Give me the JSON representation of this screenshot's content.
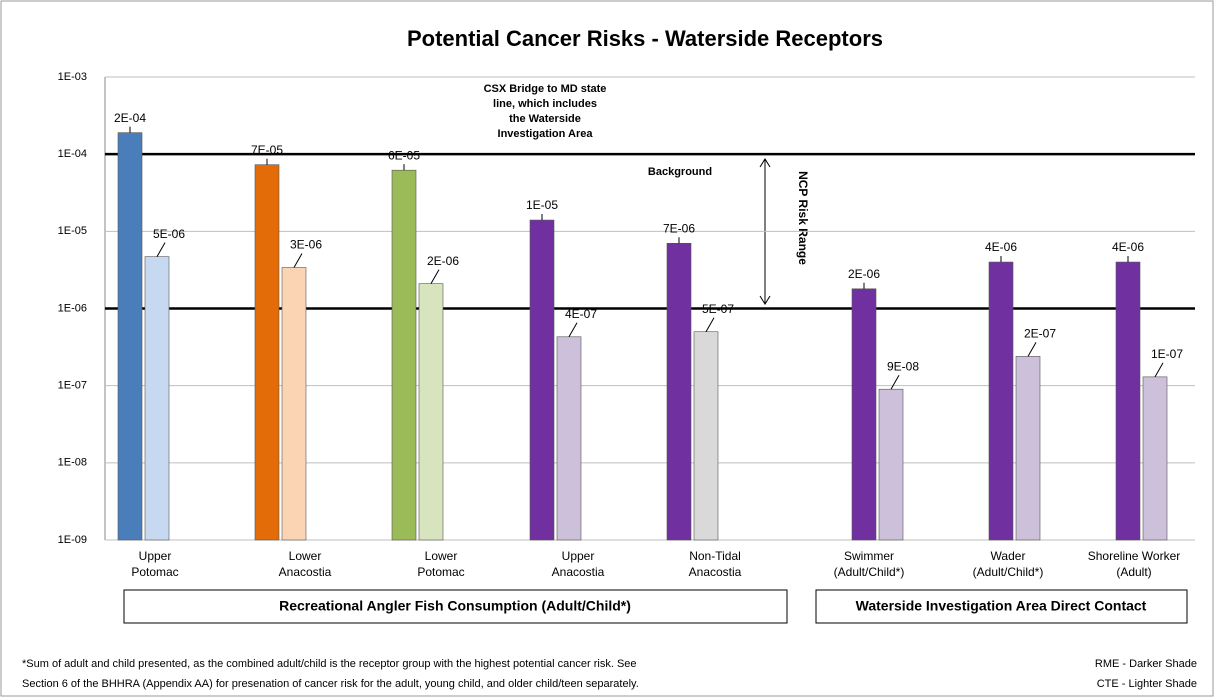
{
  "chart_data": {
    "type": "bar",
    "title": "Potential Cancer Risks - Waterside Receptors",
    "log_scale": true,
    "grid": true,
    "categories": [
      [
        "Upper",
        "Potomac"
      ],
      [
        "Lower",
        "Anacostia"
      ],
      [
        "Lower",
        "Potomac"
      ],
      [
        "Upper",
        "Anacostia"
      ],
      [
        "Non-Tidal",
        "Anacostia"
      ],
      [
        "Swimmer",
        "(Adult/Child*)"
      ],
      [
        "Wader",
        "(Adult/Child*)"
      ],
      [
        "Shoreline Worker",
        "(Adult)"
      ]
    ],
    "series": [
      {
        "name": "RME - Darker Shade",
        "colors": [
          "#4a7ebb",
          "#e36c09",
          "#9bbb59",
          "#7030a0",
          "#7030a0",
          "#7030a0",
          "#7030a0",
          "#7030a0"
        ],
        "values": [
          0.00019,
          7.3e-05,
          6.2e-05,
          1.4e-05,
          7e-06,
          1.8e-06,
          4e-06,
          4e-06
        ],
        "value_labels": [
          "2E-04",
          "7E-05",
          "6E-05",
          "1E-05",
          "7E-06",
          "2E-06",
          "4E-06",
          "4E-06"
        ]
      },
      {
        "name": "CTE - Lighter Shade",
        "colors": [
          "#c6d9f1",
          "#fbd4b4",
          "#d7e4bd",
          "#ccc0da",
          "#d9d9d9",
          "#ccc0da",
          "#ccc0da",
          "#ccc0da"
        ],
        "values": [
          4.7e-06,
          3.4e-06,
          2.1e-06,
          4.3e-07,
          5e-07,
          9e-08,
          2.4e-07,
          1.3e-07
        ],
        "value_labels": [
          "5E-06",
          "3E-06",
          "2E-06",
          "4E-07",
          "5E-07",
          "9E-08",
          "2E-07",
          "1E-07"
        ]
      }
    ],
    "ylim": [
      1e-09,
      0.001
    ],
    "yticks": [
      {
        "value": 1e-09,
        "label": "1E-09"
      },
      {
        "value": 1e-08,
        "label": "1E-08"
      },
      {
        "value": 1e-07,
        "label": "1E-07"
      },
      {
        "value": 1e-06,
        "label": "1E-06"
      },
      {
        "value": 1e-05,
        "label": "1E-05"
      },
      {
        "value": 0.0001,
        "label": "1E-04"
      },
      {
        "value": 0.001,
        "label": "1E-03"
      }
    ],
    "reference_lines": [
      0.0001,
      1e-06
    ],
    "annotations": {
      "bridge": [
        "CSX Bridge to MD state",
        "line, which includes",
        "the Waterside",
        "Investigation Area"
      ],
      "background": "Background",
      "range": "NCP Risk Range"
    },
    "groups": [
      "Recreational Angler Fish Consumption (Adult/Child*)",
      "Waterside Investigation Area Direct Contact"
    ],
    "footnote": [
      "*Sum of adult and child presented, as the combined adult/child is the receptor group with the highest potential cancer risk.  See",
      "Section 6 of the BHHRA (Appendix AA) for presenation of cancer risk for the adult, young child, and older child/teen separately."
    ]
  }
}
